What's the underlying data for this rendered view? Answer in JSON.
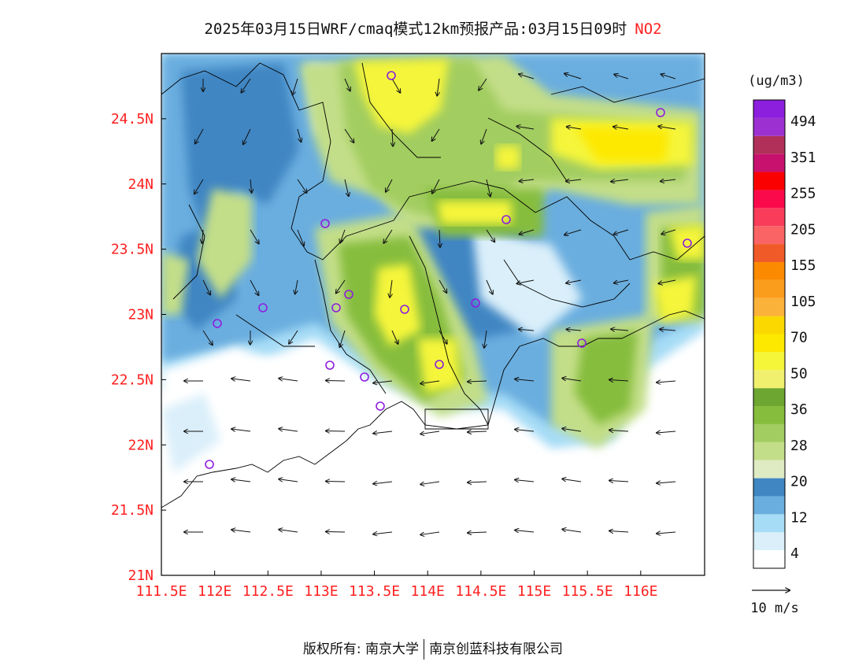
{
  "title": {
    "main": "2025年03月15日WRF/cmaq模式12km预报产品:03月15日09时",
    "pollutant": "NO2"
  },
  "axes": {
    "lon_ticks": [
      "111.5E",
      "112E",
      "112.5E",
      "113E",
      "113.5E",
      "114E",
      "114.5E",
      "115E",
      "115.5E",
      "116E"
    ],
    "lat_ticks": [
      "24.5N",
      "24N",
      "23.5N",
      "23N",
      "22.5N",
      "22N",
      "21.5N",
      "21N"
    ],
    "lon_range": [
      111.5,
      116.6
    ],
    "lat_range": [
      21.0,
      25.0
    ]
  },
  "colorbar": {
    "unit": "(ug/m3)",
    "labels": [
      "494",
      "351",
      "255",
      "205",
      "155",
      "105",
      "70",
      "50",
      "36",
      "28",
      "20",
      "12",
      "4"
    ],
    "colors": [
      "#ffffff",
      "#daeffa",
      "#a6dcf6",
      "#6aaedf",
      "#3f86c3",
      "#dfebc3",
      "#c3de88",
      "#a2cd61",
      "#86bd3c",
      "#6da631",
      "#f1f06e",
      "#f5f53a",
      "#fde800",
      "#fbd800",
      "#fbb23a",
      "#fb9d1c",
      "#fb8a00",
      "#f05a28",
      "#fa6464",
      "#f83c5a",
      "#fa0a4a",
      "#fa0000",
      "#c8116e",
      "#b0305a",
      "#9c30d0",
      "#8c1ede"
    ]
  },
  "wind_legend": {
    "label": "10 m/s"
  },
  "stations_label": "stations",
  "copyright": {
    "left": "版权所有: 南京大学",
    "right": "南京创蓝科技有限公司"
  }
}
